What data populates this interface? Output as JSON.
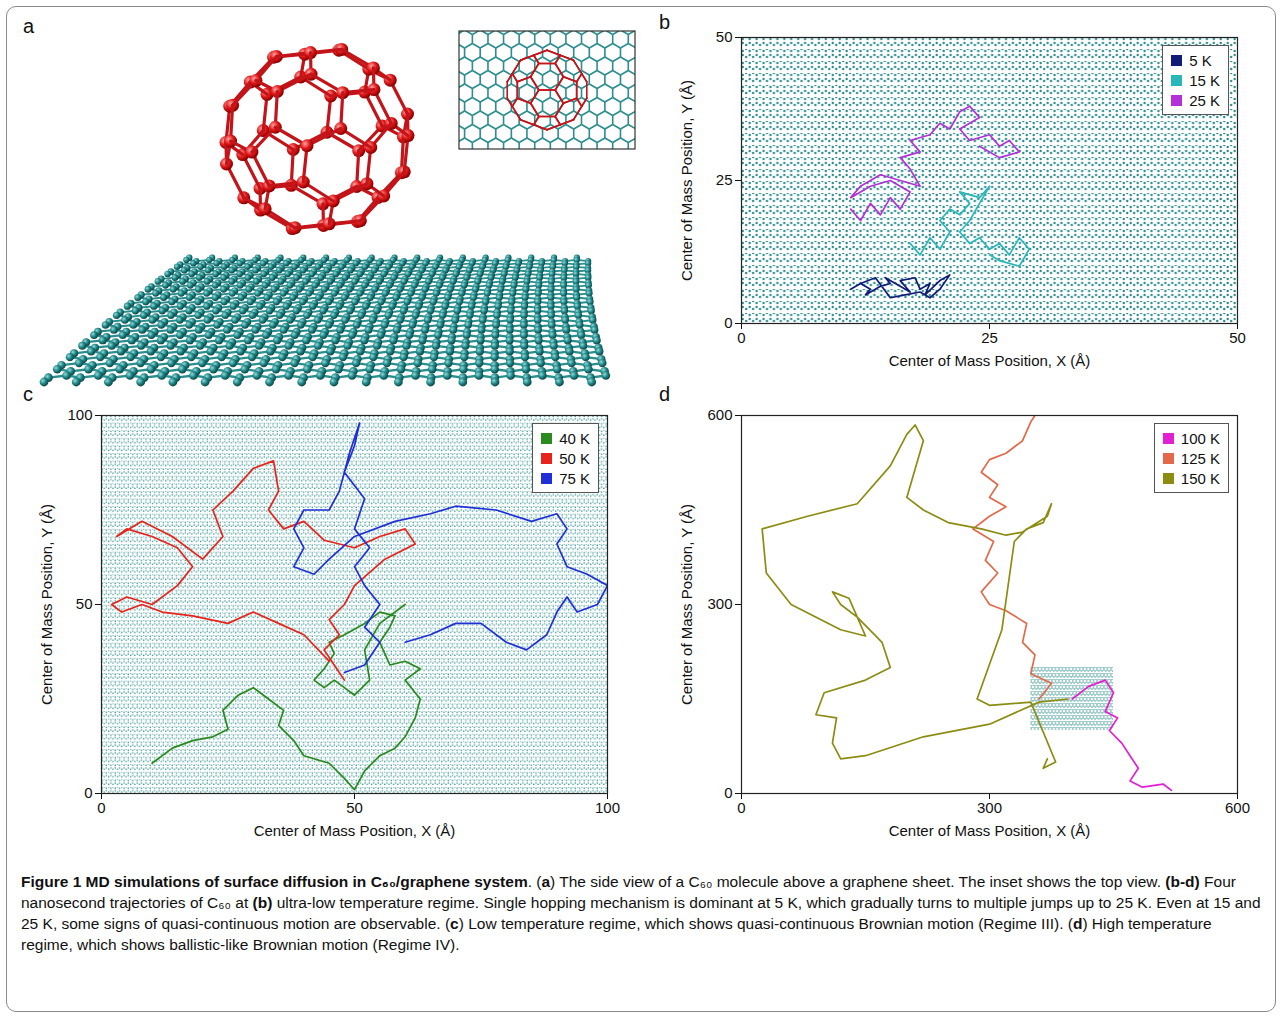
{
  "diagram": {
    "panel": "a"
  },
  "chart_data": [
    {
      "panel": "b",
      "type": "line",
      "x_label": "Center of Mass Position, X (Å)",
      "y_label": "Center of Mass Position, Y (Å)",
      "xlim": [
        0,
        50
      ],
      "ylim": [
        0,
        50
      ],
      "xticks": [
        0,
        25,
        50
      ],
      "yticks": [
        0,
        25,
        50
      ],
      "grid": false,
      "legend": "top-right",
      "lattice_region": {
        "x": [
          0,
          50
        ],
        "y": [
          0,
          50
        ]
      },
      "series": [
        {
          "name": "5 K",
          "color": "#101c78",
          "x": [
            11,
            12,
            13,
            12.5,
            14,
            15,
            14.5,
            16,
            17,
            16,
            17.5,
            18,
            19,
            18.5,
            20,
            21,
            20,
            19,
            18,
            16.5,
            15,
            13.5,
            12
          ],
          "y": [
            6,
            7,
            6,
            5,
            6.5,
            7,
            8,
            6.5,
            5.5,
            7.5,
            8,
            6,
            7,
            5,
            7.5,
            8.5,
            6,
            4.5,
            5.5,
            5,
            4.5,
            8,
            7
          ]
        },
        {
          "name": "15 K",
          "color": "#2ab7b7",
          "x": [
            17,
            18,
            19,
            20,
            21,
            20,
            21,
            22,
            23,
            22,
            24,
            25,
            24,
            23,
            22,
            23,
            24,
            25,
            26,
            27,
            28,
            29,
            28,
            26,
            25
          ],
          "y": [
            14,
            12,
            15,
            13,
            16,
            18,
            20,
            19,
            21,
            23,
            22,
            24,
            21,
            18,
            16,
            14,
            15,
            13,
            14,
            12,
            15,
            13,
            10,
            11,
            12
          ]
        },
        {
          "name": "25 K",
          "color": "#b232d8",
          "x": [
            11,
            12,
            13,
            14,
            15,
            16,
            17,
            15,
            13,
            11,
            12,
            14,
            16,
            18,
            17,
            16,
            18,
            17,
            19,
            20,
            21,
            22,
            23,
            24,
            22,
            23,
            25,
            26,
            27,
            28,
            26,
            24
          ],
          "y": [
            20,
            18,
            21,
            19,
            22,
            20,
            23,
            25,
            24,
            22,
            24,
            26,
            25,
            24,
            27,
            29,
            30,
            32,
            33,
            35,
            34,
            37,
            38,
            36,
            34,
            32,
            33,
            31,
            32,
            30,
            29,
            31
          ]
        }
      ]
    },
    {
      "panel": "c",
      "type": "line",
      "x_label": "Center of Mass Position, X (Å)",
      "y_label": "Center of Mass Position, Y (Å)",
      "xlim": [
        0,
        100
      ],
      "ylim": [
        0,
        100
      ],
      "xticks": [
        0,
        50,
        100
      ],
      "yticks": [
        0,
        50,
        100
      ],
      "grid": false,
      "legend": "top-right",
      "lattice_region": {
        "x": [
          0,
          100
        ],
        "y": [
          0,
          100
        ]
      },
      "series": [
        {
          "name": "40 K",
          "color": "#2a8a1e",
          "x": [
            10,
            14,
            18,
            22,
            25,
            24,
            27,
            30,
            33,
            36,
            35,
            38,
            40,
            45,
            48,
            50,
            52,
            55,
            58,
            60,
            62,
            63,
            60,
            63,
            60,
            57,
            55,
            57,
            58,
            55,
            52,
            48,
            45,
            46,
            44,
            42,
            44,
            46,
            48,
            50,
            53,
            52,
            55,
            60,
            58
          ],
          "y": [
            8,
            12,
            14,
            15,
            17,
            22,
            26,
            28,
            25,
            22,
            18,
            14,
            10,
            8,
            4,
            1,
            6,
            10,
            12,
            15,
            20,
            25,
            30,
            33,
            35,
            34,
            40,
            44,
            47,
            48,
            45,
            42,
            40,
            37,
            33,
            30,
            28,
            30,
            28,
            26,
            30,
            38,
            45,
            50,
            48
          ]
        },
        {
          "name": "50 K",
          "color": "#e8231b",
          "x": [
            45,
            40,
            35,
            30,
            25,
            18,
            12,
            8,
            4,
            2,
            5,
            10,
            15,
            18,
            15,
            10,
            5,
            3,
            8,
            14,
            20,
            24,
            22,
            26,
            30,
            34,
            35,
            33,
            36,
            40,
            44,
            50,
            55,
            60,
            62,
            56,
            50,
            48,
            45,
            47,
            44,
            46,
            48
          ],
          "y": [
            35,
            42,
            45,
            48,
            45,
            47,
            48,
            50,
            48,
            50,
            52,
            50,
            55,
            60,
            65,
            68,
            70,
            68,
            72,
            68,
            62,
            68,
            75,
            80,
            86,
            88,
            80,
            75,
            70,
            72,
            67,
            65,
            68,
            70,
            66,
            62,
            55,
            50,
            46,
            42,
            38,
            34,
            30
          ]
        },
        {
          "name": "75 K",
          "color": "#1f30d6",
          "x": [
            48,
            52,
            55,
            52,
            55,
            52,
            50,
            53,
            50,
            52,
            48,
            50,
            51,
            49,
            47,
            45,
            40,
            38,
            40,
            38,
            42,
            45,
            50,
            58,
            65,
            70,
            78,
            85,
            90,
            92,
            90,
            92,
            96,
            100,
            98,
            94,
            92,
            90,
            88,
            84,
            80,
            75,
            70,
            65,
            60
          ],
          "y": [
            32,
            34,
            40,
            44,
            50,
            55,
            60,
            65,
            70,
            78,
            85,
            92,
            98,
            90,
            80,
            75,
            75,
            70,
            65,
            60,
            58,
            62,
            68,
            72,
            74,
            76,
            75,
            72,
            74,
            70,
            66,
            60,
            58,
            55,
            50,
            48,
            52,
            48,
            42,
            38,
            40,
            45,
            45,
            42,
            40
          ]
        }
      ]
    },
    {
      "panel": "d",
      "type": "line",
      "x_label": "Center of Mass Position, X (Å)",
      "y_label": "Center of Mass Position, Y (Å)",
      "xlim": [
        0,
        600
      ],
      "ylim": [
        0,
        600
      ],
      "xticks": [
        0,
        300,
        600
      ],
      "yticks": [
        0,
        300,
        600
      ],
      "grid": false,
      "legend": "top-right",
      "lattice_region": {
        "x": [
          350,
          450
        ],
        "y": [
          100,
          200
        ]
      },
      "series": [
        {
          "name": "100 K",
          "color": "#e21fd2",
          "x": [
            400,
            420,
            440,
            450,
            440,
            455,
            445,
            460,
            470,
            480,
            470,
            485,
            510,
            520
          ],
          "y": [
            150,
            170,
            180,
            160,
            130,
            120,
            100,
            80,
            60,
            40,
            20,
            10,
            15,
            5
          ]
        },
        {
          "name": "125 K",
          "color": "#e26a4a",
          "x": [
            360,
            375,
            350,
            355,
            340,
            345,
            320,
            300,
            290,
            310,
            295,
            305,
            280,
            300,
            320,
            300,
            310,
            290,
            300,
            320,
            340,
            350,
            355
          ],
          "y": [
            150,
            175,
            190,
            220,
            240,
            270,
            290,
            300,
            320,
            350,
            370,
            400,
            420,
            440,
            455,
            470,
            490,
            510,
            530,
            540,
            560,
            590,
            600
          ]
        },
        {
          "name": "150 K",
          "color": "#8c8c12",
          "x": [
            395,
            360,
            300,
            220,
            150,
            120,
            110,
            115,
            90,
            100,
            150,
            180,
            170,
            140,
            120,
            110,
            130,
            150,
            120,
            60,
            30,
            25,
            80,
            140,
            180,
            200,
            210,
            220,
            200,
            220,
            250,
            290,
            320,
            340,
            370,
            375,
            365,
            345,
            330,
            315,
            285,
            300,
            350,
            380,
            365,
            370
          ],
          "y": [
            150,
            145,
            110,
            90,
            60,
            55,
            80,
            120,
            125,
            160,
            180,
            200,
            240,
            280,
            300,
            320,
            310,
            250,
            260,
            300,
            350,
            420,
            440,
            460,
            520,
            570,
            585,
            560,
            470,
            450,
            430,
            420,
            410,
            415,
            440,
            460,
            430,
            420,
            400,
            260,
            150,
            140,
            145,
            50,
            40,
            55
          ]
        }
      ]
    }
  ],
  "caption": [
    {
      "text": "Figure 1 MD simulations of surface diffusion in C₆₀/graphene system",
      "bold": true
    },
    {
      "text": ". ("
    },
    {
      "text": "a",
      "bold": true
    },
    {
      "text": ") The side view of a C₆₀ molecule above a graphene sheet. The inset shows the top view. "
    },
    {
      "text": "(b-d)",
      "bold": true
    },
    {
      "text": " Four nanosecond trajectories of C₆₀ at "
    },
    {
      "text": "(b)",
      "bold": true
    },
    {
      "text": " ultra-low temperature regime. Single hopping mechanism is dominant at 5 K, which gradually turns to multiple jumps up to 25 K. Even at 15 and 25 K, some signs of quasi-continuous motion are observable. ("
    },
    {
      "text": "c",
      "bold": true
    },
    {
      "text": ") Low temperature regime, which shows quasi-continuous Brownian motion (Regime III). ("
    },
    {
      "text": "d",
      "bold": true
    },
    {
      "text": ") High temperature regime, which shows ballistic-like Brownian motion (Regime IV)."
    }
  ]
}
